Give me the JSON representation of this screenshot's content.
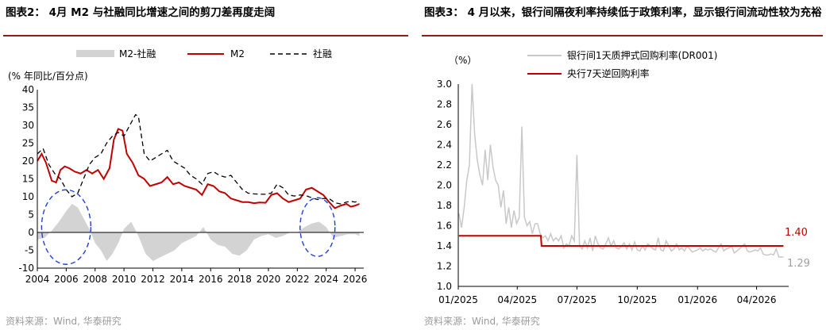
{
  "charts": [
    {
      "title": "图表2： 4月 M2 与社融同比增速之间的剪刀差再度走阔",
      "source": "资料来源：Wind, 华泰研究",
      "unit_label": "(% 年同比/百分点)",
      "legend": [
        "M2-社融",
        "M2",
        "社融"
      ],
      "colors": {
        "gap": "#d3d3d3",
        "m2": "#c00000",
        "tsf": "#000000",
        "ellipse": "#1f3fd6",
        "axis": "#000000"
      }
    },
    {
      "title": "图表3： 4 月以来，银行间隔夜利率持续低于政策利率，显示银行间流动性较为充裕",
      "source": "资料来源：Wind, 华泰研究",
      "unit_label": "（%）",
      "legend": [
        "银行间1天质押式回购利率(DR001)",
        "央行7天逆回购利率"
      ],
      "end_labels": [
        "1.40",
        "1.29"
      ],
      "colors": {
        "dr001": "#c8c8c8",
        "policy": "#c00000",
        "label_red": "#c00000",
        "label_gray": "#a0a0a0",
        "axis": "#000000"
      }
    }
  ],
  "chart_data": [
    {
      "type": "line",
      "xlabel": "",
      "ylabel": "(% 年同比/百分点)",
      "ylim": [
        -10,
        40
      ],
      "xlim": [
        2004,
        2026.6
      ],
      "yticks": [
        "40",
        "35",
        "30",
        "25",
        "20",
        "15",
        "10",
        "5",
        "0",
        "-5",
        "-10"
      ],
      "xticks": [
        "2004",
        "2006",
        "2008",
        "2010",
        "2012",
        "2014",
        "2016",
        "2018",
        "2020",
        "2022",
        "2024",
        "2026"
      ],
      "legend_position": "top",
      "grid": false,
      "series": [
        {
          "name": "M2-社融",
          "style": "area",
          "x": [
            2004.0,
            2004.5,
            2005.0,
            2005.5,
            2006.0,
            2006.4,
            2006.8,
            2007.2,
            2007.6,
            2008.0,
            2008.4,
            2008.8,
            2009.2,
            2009.6,
            2010.0,
            2010.5,
            2011.0,
            2011.5,
            2012.0,
            2012.5,
            2013.0,
            2013.5,
            2014.0,
            2014.5,
            2015.0,
            2015.5,
            2016.0,
            2016.5,
            2017.0,
            2017.5,
            2018.0,
            2018.5,
            2019.0,
            2019.5,
            2020.0,
            2020.5,
            2021.0,
            2021.5,
            2022.0,
            2022.5,
            2023.0,
            2023.5,
            2024.0,
            2024.5,
            2025.0,
            2025.5,
            2026.0,
            2026.3
          ],
          "values": [
            -2,
            -1.5,
            0.5,
            3,
            6,
            8,
            7,
            4,
            1,
            -3,
            -5,
            -8,
            -6,
            -3,
            1,
            3,
            -1,
            -6,
            -8,
            -7,
            -6,
            -5,
            -3,
            -2,
            -1,
            1.5,
            -2,
            -3.5,
            -4,
            -6,
            -6.5,
            -5,
            -2,
            -1,
            -0.5,
            -1.5,
            -1,
            0,
            0,
            1.5,
            2.5,
            3,
            1.5,
            -1.5,
            -1,
            -0.5,
            -0.5,
            -1
          ]
        },
        {
          "name": "M2",
          "x": [
            2004.0,
            2004.3,
            2004.6,
            2005.0,
            2005.3,
            2005.6,
            2005.9,
            2006.2,
            2006.6,
            2007.0,
            2007.4,
            2007.8,
            2008.2,
            2008.6,
            2009.0,
            2009.3,
            2009.6,
            2009.9,
            2010.2,
            2010.6,
            2011.0,
            2011.4,
            2011.8,
            2012.2,
            2012.6,
            2013.0,
            2013.4,
            2013.8,
            2014.2,
            2014.6,
            2015.0,
            2015.4,
            2015.8,
            2016.2,
            2016.6,
            2017.0,
            2017.4,
            2017.8,
            2018.2,
            2018.6,
            2019.0,
            2019.4,
            2019.8,
            2020.2,
            2020.6,
            2021.0,
            2021.4,
            2021.8,
            2022.2,
            2022.6,
            2023.0,
            2023.4,
            2023.8,
            2024.2,
            2024.6,
            2025.0,
            2025.4,
            2025.7,
            2026.0,
            2026.3
          ],
          "values": [
            20,
            22,
            19.5,
            14.5,
            14,
            17.5,
            18.5,
            18,
            17,
            16.5,
            17.5,
            16.5,
            17.5,
            15,
            18,
            26,
            29,
            28.5,
            22,
            19.5,
            16,
            15,
            13,
            13.5,
            14,
            15.5,
            13.5,
            14,
            13,
            12.5,
            12,
            10.5,
            13.5,
            13,
            11.5,
            11,
            9.5,
            9,
            8.5,
            8.5,
            8.2,
            8.4,
            8.3,
            10.5,
            11,
            9.5,
            8.5,
            9,
            9.5,
            12,
            12.5,
            11.5,
            10.5,
            8.5,
            6.8,
            7.5,
            8,
            7.2,
            7.5,
            8
          ]
        },
        {
          "name": "社融",
          "style": "dashed",
          "x": [
            2004.0,
            2004.4,
            2004.8,
            2005.2,
            2005.6,
            2006.0,
            2006.4,
            2006.8,
            2007.2,
            2007.6,
            2008.0,
            2008.4,
            2008.8,
            2009.2,
            2009.6,
            2010.0,
            2010.4,
            2010.8,
            2011.0,
            2011.4,
            2011.8,
            2012.2,
            2012.6,
            2013.0,
            2013.4,
            2013.8,
            2014.2,
            2014.6,
            2015.0,
            2015.4,
            2015.8,
            2016.2,
            2016.6,
            2017.0,
            2017.4,
            2017.8,
            2018.2,
            2018.6,
            2019.0,
            2019.4,
            2019.8,
            2020.2,
            2020.6,
            2021.0,
            2021.4,
            2021.8,
            2022.2,
            2022.6,
            2023.0,
            2023.4,
            2023.8,
            2024.2,
            2024.6,
            2025.0,
            2025.4,
            2025.7,
            2026.0,
            2026.3
          ],
          "values": [
            22,
            23.5,
            19,
            16.5,
            15,
            12,
            10,
            11,
            15,
            19,
            21,
            22,
            25,
            27,
            28,
            27,
            30,
            33,
            32.5,
            22,
            20,
            21,
            22,
            23,
            20,
            19,
            18,
            16,
            15,
            13.5,
            16.5,
            17,
            16,
            15.5,
            16,
            14,
            12,
            11,
            10.8,
            10.7,
            10.7,
            11,
            13.5,
            12.5,
            10.5,
            10.2,
            10.5,
            10.3,
            9.7,
            9.2,
            9.5,
            9.5,
            8.3,
            8.0,
            8.5,
            8.7,
            8.5,
            8.9
          ]
        }
      ],
      "annotations": [
        "ellipse around 2006 gap peak",
        "ellipse around 2023 gap peak"
      ]
    },
    {
      "type": "line",
      "xlabel": "",
      "ylabel": "（%）",
      "ylim": [
        1.0,
        3.0
      ],
      "yticks": [
        "3.0",
        "2.8",
        "2.6",
        "2.4",
        "2.2",
        "2.0",
        "1.8",
        "1.6",
        "1.4",
        "1.2",
        "1.0"
      ],
      "xticks": [
        "01/2025",
        "04/2025",
        "07/2025",
        "10/2025",
        "01/2026",
        "04/2026"
      ],
      "legend_position": "top",
      "grid": false,
      "series": [
        {
          "name": "银行间1天质押式回购利率(DR001)",
          "x": [
            "2025-01-02",
            "2025-01-06",
            "2025-01-10",
            "2025-01-14",
            "2025-01-18",
            "2025-01-22",
            "2025-01-26",
            "2025-01-30",
            "2025-02-03",
            "2025-02-07",
            "2025-02-11",
            "2025-02-15",
            "2025-02-19",
            "2025-02-23",
            "2025-02-27",
            "2025-03-03",
            "2025-03-07",
            "2025-03-11",
            "2025-03-15",
            "2025-03-19",
            "2025-03-23",
            "2025-03-27",
            "2025-03-31",
            "2025-04-04",
            "2025-04-08",
            "2025-04-12",
            "2025-04-16",
            "2025-04-20",
            "2025-04-24",
            "2025-04-28",
            "2025-05-02",
            "2025-05-06",
            "2025-05-10",
            "2025-05-14",
            "2025-05-18",
            "2025-05-22",
            "2025-05-26",
            "2025-05-30",
            "2025-06-03",
            "2025-06-07",
            "2025-06-11",
            "2025-06-15",
            "2025-06-19",
            "2025-06-23",
            "2025-06-27",
            "2025-07-01",
            "2025-07-05",
            "2025-07-09",
            "2025-07-13",
            "2025-07-17",
            "2025-07-21",
            "2025-07-25",
            "2025-07-29",
            "2025-08-02",
            "2025-08-06",
            "2025-08-10",
            "2025-08-14",
            "2025-08-18",
            "2025-08-22",
            "2025-08-26",
            "2025-08-30",
            "2025-09-03",
            "2025-09-07",
            "2025-09-11",
            "2025-09-15",
            "2025-09-19",
            "2025-09-23",
            "2025-09-27",
            "2025-10-01",
            "2025-10-05",
            "2025-10-09",
            "2025-10-13",
            "2025-10-17",
            "2025-10-21",
            "2025-10-25",
            "2025-10-29",
            "2025-11-02",
            "2025-11-06",
            "2025-11-10",
            "2025-11-14",
            "2025-11-18",
            "2025-11-22",
            "2025-11-26",
            "2025-11-30",
            "2025-12-04",
            "2025-12-08",
            "2025-12-12",
            "2025-12-16",
            "2025-12-20",
            "2025-12-24",
            "2025-12-28",
            "2026-01-01",
            "2026-01-05",
            "2026-01-09",
            "2026-01-13",
            "2026-01-17",
            "2026-01-21",
            "2026-01-25",
            "2026-01-29",
            "2026-02-02",
            "2026-02-06",
            "2026-02-10",
            "2026-02-14",
            "2026-02-18",
            "2026-02-22",
            "2026-02-26",
            "2026-03-02",
            "2026-03-06",
            "2026-03-10",
            "2026-03-14",
            "2026-03-18",
            "2026-03-22",
            "2026-03-26",
            "2026-03-30",
            "2026-04-03",
            "2026-04-07",
            "2026-04-11",
            "2026-04-15",
            "2026-04-19",
            "2026-04-23",
            "2026-04-27",
            "2026-05-01",
            "2026-05-05",
            "2026-05-09",
            "2026-05-12"
          ],
          "values": [
            1.72,
            1.58,
            1.78,
            2.05,
            2.2,
            3.0,
            2.5,
            2.25,
            2.1,
            2.0,
            2.35,
            2.05,
            2.4,
            2.18,
            2.05,
            2.0,
            1.78,
            1.95,
            1.62,
            1.78,
            1.58,
            1.75,
            1.62,
            1.68,
            2.58,
            1.68,
            1.6,
            1.64,
            1.52,
            1.62,
            1.62,
            1.52,
            1.48,
            1.5,
            1.45,
            1.52,
            1.45,
            1.48,
            1.45,
            1.5,
            1.38,
            1.42,
            1.4,
            1.5,
            1.45,
            2.3,
            1.4,
            1.37,
            1.45,
            1.38,
            1.48,
            1.35,
            1.5,
            1.42,
            1.38,
            1.37,
            1.42,
            1.48,
            1.4,
            1.45,
            1.38,
            1.37,
            1.4,
            1.43,
            1.37,
            1.42,
            1.36,
            1.44,
            1.36,
            1.35,
            1.4,
            1.36,
            1.42,
            1.4,
            1.37,
            1.36,
            1.48,
            1.36,
            1.35,
            1.45,
            1.4,
            1.35,
            1.37,
            1.42,
            1.36,
            1.38,
            1.35,
            1.4,
            1.37,
            1.34,
            1.35,
            1.36,
            1.38,
            1.35,
            1.37,
            1.36,
            1.37,
            1.35,
            1.34,
            1.38,
            1.42,
            1.35,
            1.37,
            1.38,
            1.4,
            1.33,
            1.35,
            1.37,
            1.4,
            1.42,
            1.35,
            1.34,
            1.35,
            1.36,
            1.35,
            1.38,
            1.32,
            1.31,
            1.31,
            1.32,
            1.31,
            1.37,
            1.29,
            1.29,
            1.29
          ]
        },
        {
          "name": "央行7天逆回购利率",
          "x": [
            "2025-01-02",
            "2025-05-07",
            "2025-05-08",
            "2026-05-12"
          ],
          "values": [
            1.5,
            1.5,
            1.4,
            1.4
          ],
          "step": true
        }
      ],
      "end_values": {
        "policy": 1.4,
        "dr001": 1.29
      }
    }
  ]
}
